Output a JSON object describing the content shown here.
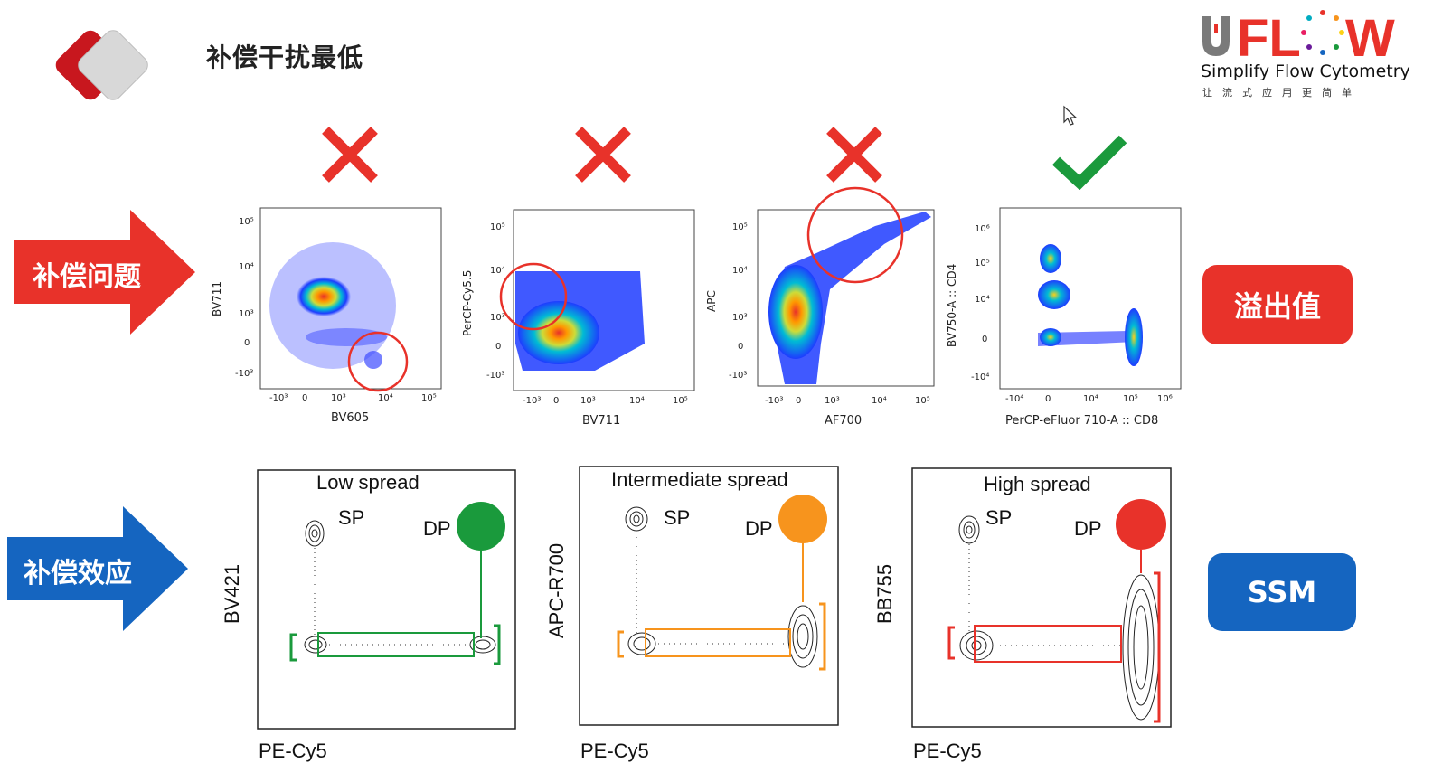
{
  "header": {
    "title": "补偿干扰最低"
  },
  "brand": {
    "name": "uFLOW",
    "tagline": "Simplify Flow Cytometry",
    "tagline_cn": "让流式应用更简单",
    "colors": {
      "u": "#7a7a7a",
      "letters": "#e8322a"
    }
  },
  "row_labels": {
    "problem": {
      "text": "补偿问题",
      "color": "#e8322a"
    },
    "effect": {
      "text": "补偿效应",
      "color": "#1565c0"
    }
  },
  "side_buttons": {
    "overflow": {
      "text": "溢出值",
      "color": "#e8322a"
    },
    "ssm": {
      "text": "SSM",
      "color": "#1565c0"
    }
  },
  "verdicts": [
    {
      "icon": "cross-icon",
      "color": "#e8322a"
    },
    {
      "icon": "cross-icon",
      "color": "#e8322a"
    },
    {
      "icon": "cross-icon",
      "color": "#e8322a"
    },
    {
      "icon": "check-icon",
      "color": "#1a9a3c"
    }
  ],
  "dot_plots": [
    {
      "x_label": "BV605",
      "y_label": "BV711",
      "x_ticks": [
        "-10³",
        "0",
        "10³",
        "10⁴",
        "10⁵"
      ],
      "y_ticks": [
        "10⁵",
        "10⁴",
        "10³",
        "0",
        "-10³"
      ]
    },
    {
      "x_label": "BV711",
      "y_label": "PerCP-Cy5.5",
      "x_ticks": [
        "-10³",
        "0",
        "10³",
        "10⁴",
        "10⁵"
      ],
      "y_ticks": [
        "10⁵",
        "10⁴",
        "10³",
        "0",
        "-10³"
      ]
    },
    {
      "x_label": "AF700",
      "y_label": "APC",
      "x_ticks": [
        "-10³",
        "0",
        "10³",
        "10⁴",
        "10⁵"
      ],
      "y_ticks": [
        "10⁵",
        "10⁴",
        "10³",
        "0",
        "-10³"
      ]
    },
    {
      "x_label": "PerCP-eFluor 710-A :: CD8",
      "y_label": "BV750-A :: CD4",
      "x_ticks": [
        "-10⁴",
        "0",
        "10⁴",
        "10⁵",
        "10⁶"
      ],
      "y_ticks": [
        "10⁶",
        "10⁵",
        "10⁴",
        "0",
        "-10⁴"
      ]
    }
  ],
  "spread_plots": [
    {
      "title": "Low spread",
      "x_label": "PE-Cy5",
      "y_label": "BV421",
      "sp": "SP",
      "dp": "DP",
      "color": "#1a9a3c"
    },
    {
      "title": "Intermediate spread",
      "x_label": "PE-Cy5",
      "y_label": "APC-R700",
      "sp": "SP",
      "dp": "DP",
      "color": "#f7941d"
    },
    {
      "title": "High spread",
      "x_label": "PE-Cy5",
      "y_label": "BB755",
      "sp": "SP",
      "dp": "DP",
      "color": "#e8322a"
    }
  ]
}
